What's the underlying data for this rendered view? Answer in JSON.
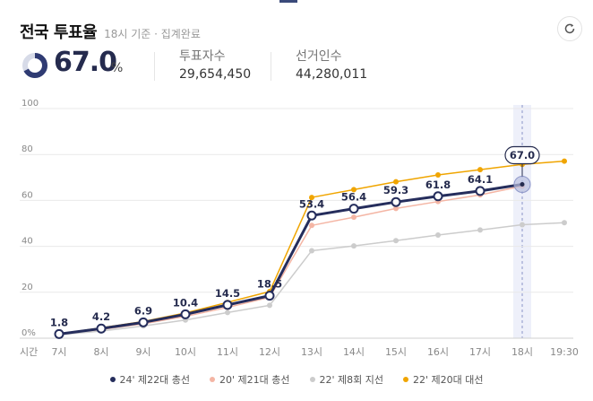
{
  "header": {
    "title": "전국 투표율",
    "subtitle": "18시 기준 · 집계완료"
  },
  "summary": {
    "rate_value": "67.0",
    "rate_unit": "%",
    "rate_fraction": 0.67,
    "voters_label": "투표자수",
    "voters_value": "29,654,450",
    "electorate_label": "선거인수",
    "electorate_value": "44,280,011"
  },
  "icons": {
    "refresh": "refresh-icon"
  },
  "chart_data": {
    "type": "line",
    "categories": [
      "7시",
      "8시",
      "9시",
      "10시",
      "11시",
      "12시",
      "13시",
      "14시",
      "15시",
      "16시",
      "17시",
      "18시",
      "19:30"
    ],
    "xlabel": "시간",
    "ylabel": "",
    "ylim": [
      0,
      100
    ],
    "yticks": [
      "0%",
      "20",
      "40",
      "60",
      "80",
      "100"
    ],
    "grid": true,
    "legend_position": "bottom",
    "highlight_category": "18시",
    "highlight_label": "67.0",
    "series": [
      {
        "name": "22' 제20대 대선",
        "color": "#f0a500",
        "values": [
          1.9,
          4.5,
          7.3,
          11.0,
          15.6,
          20.3,
          61.3,
          64.7,
          68.1,
          71.1,
          73.4,
          75.7,
          77.1
        ]
      },
      {
        "name": "20' 제21대 총선",
        "color": "#f4b5a4",
        "values": [
          1.6,
          3.8,
          6.3,
          9.5,
          13.4,
          17.8,
          49.1,
          52.7,
          56.5,
          59.5,
          62.4,
          66.2,
          null
        ]
      },
      {
        "name": "22' 제8회 지선",
        "color": "#cccccc",
        "values": [
          1.5,
          3.1,
          5.3,
          7.9,
          11.2,
          14.3,
          38.1,
          40.2,
          42.5,
          44.9,
          47.1,
          49.4,
          50.3
        ]
      },
      {
        "name": "24' 제22대 총선",
        "color": "#252d5c",
        "values": [
          1.8,
          4.2,
          6.9,
          10.4,
          14.5,
          18.5,
          53.4,
          56.4,
          59.3,
          61.8,
          64.1,
          67.0,
          null
        ],
        "labels": [
          "1.8",
          "4.2",
          "6.9",
          "10.4",
          "14.5",
          "18.5",
          "53.4",
          "56.4",
          "59.3",
          "61.8",
          "64.1",
          "",
          ""
        ]
      }
    ]
  }
}
